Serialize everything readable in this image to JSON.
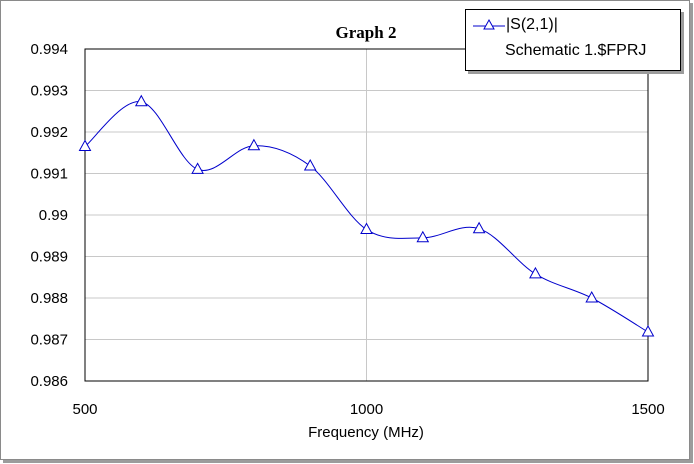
{
  "chart_data": {
    "type": "line",
    "title": "Graph 2",
    "xlabel": "Frequency (MHz)",
    "ylabel": "",
    "xlim": [
      500,
      1500
    ],
    "ylim": [
      0.986,
      0.994
    ],
    "x_ticks": [
      "500",
      "1000",
      "1500"
    ],
    "y_ticks": [
      "0.986",
      "0.987",
      "0.988",
      "0.989",
      "0.99",
      "0.991",
      "0.992",
      "0.993",
      "0.994"
    ],
    "grid": true,
    "legend_position": "top-right",
    "series": [
      {
        "name": "|S(2,1)|",
        "source": "Schematic 1.$FPRJ",
        "color": "#0000cc",
        "marker": "triangle",
        "x": [
          500,
          600,
          700,
          800,
          900,
          1000,
          1100,
          1200,
          1300,
          1400,
          1500
        ],
        "y": [
          0.99165,
          0.99273,
          0.9911,
          0.99167,
          0.99118,
          0.98965,
          0.98945,
          0.98967,
          0.98858,
          0.988,
          0.98718
        ]
      }
    ]
  }
}
